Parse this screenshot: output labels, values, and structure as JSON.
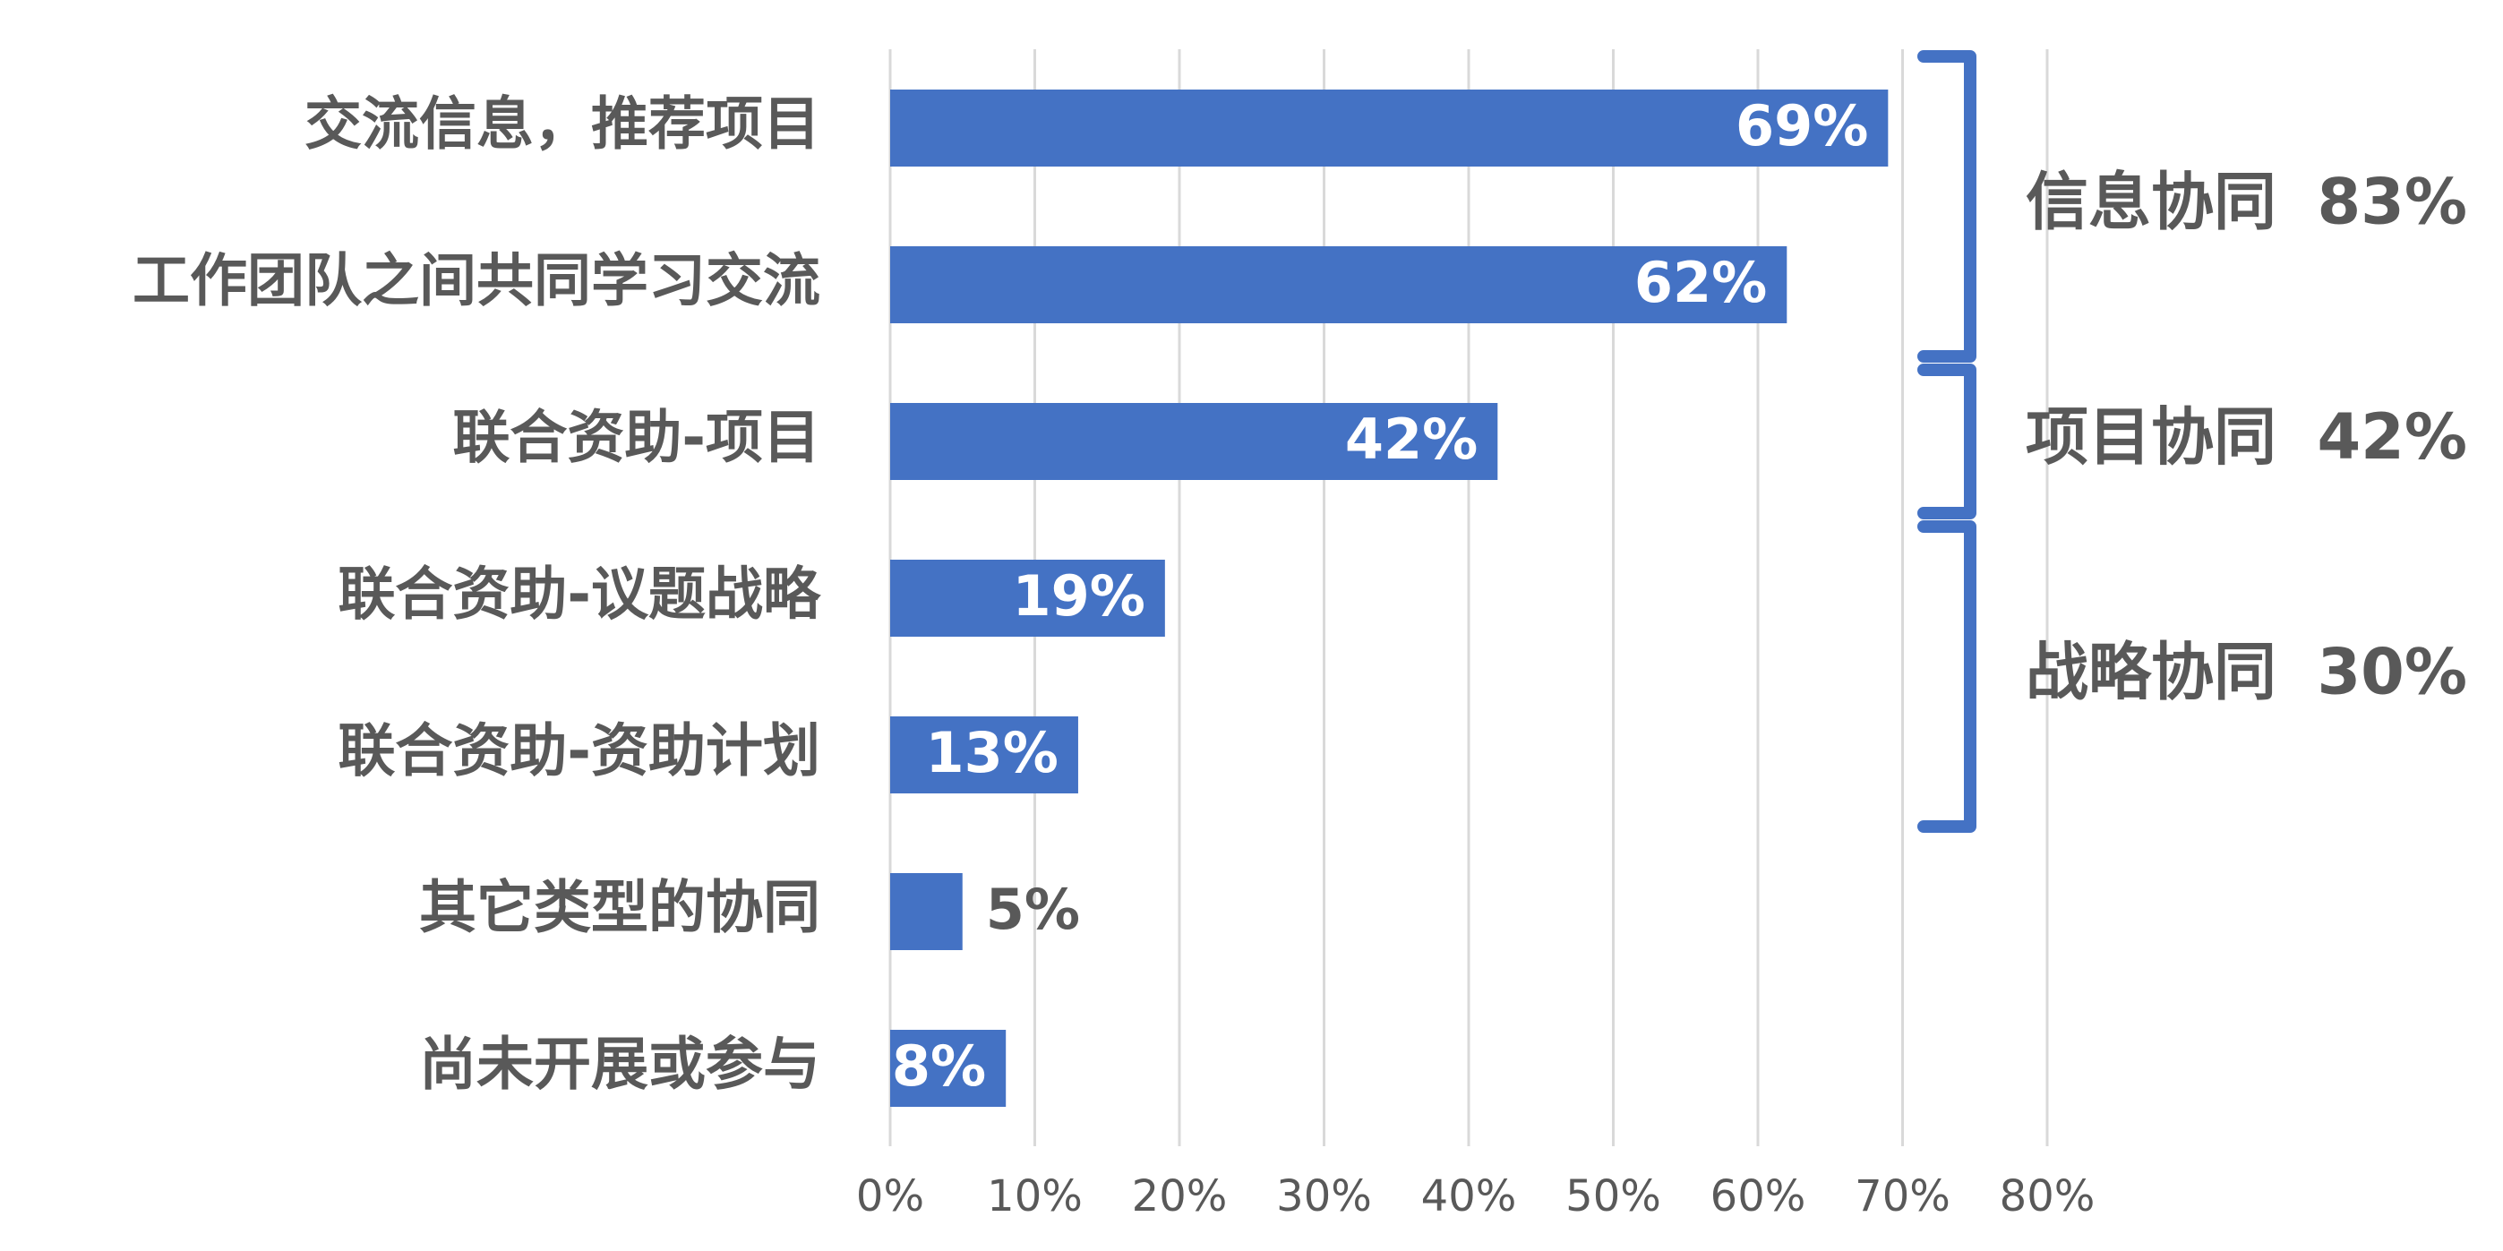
{
  "chart_data": {
    "type": "barh",
    "categories": [
      "交流信息，推荐项目",
      "工作团队之间共同学习交流",
      "联合资助-项目",
      "联合资助-议题战略",
      "联合资助-资助计划",
      "其它类型的协同",
      "尚未开展或参与"
    ],
    "values": [
      69,
      62,
      42,
      19,
      13,
      5,
      8
    ],
    "value_labels": [
      "69%",
      "62%",
      "42%",
      "19%",
      "13%",
      "5%",
      "8%"
    ],
    "color": "#4472c4",
    "xlim": [
      0,
      80
    ],
    "xticks": [
      {
        "value": 0,
        "label": "0%"
      },
      {
        "value": 10,
        "label": "10%"
      },
      {
        "value": 20,
        "label": "20%"
      },
      {
        "value": 30,
        "label": "30%"
      },
      {
        "value": 40,
        "label": "40%"
      },
      {
        "value": 50,
        "label": "50%"
      },
      {
        "value": 60,
        "label": "60%"
      },
      {
        "value": 70,
        "label": "70%"
      },
      {
        "value": 80,
        "label": "80%"
      }
    ],
    "grid": true,
    "groups": {
      "names": [
        "信息协同",
        "项目协同",
        "战略协同"
      ],
      "values": [
        83,
        42,
        30
      ],
      "value_labels": [
        "83%",
        "42%",
        "30%"
      ]
    }
  }
}
